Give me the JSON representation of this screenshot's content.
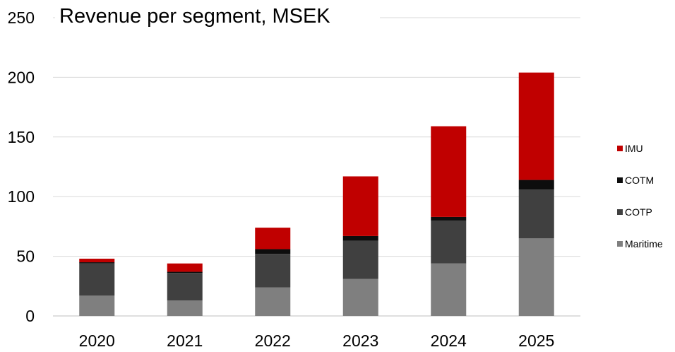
{
  "chart_data": {
    "type": "bar",
    "stacked": true,
    "title": "Revenue per segment, MSEK",
    "xlabel": "",
    "ylabel": "",
    "categories": [
      "2020",
      "2021",
      "2022",
      "2023",
      "2024",
      "2025"
    ],
    "ylim": [
      0,
      250
    ],
    "yticks": [
      0,
      50,
      100,
      150,
      200,
      250
    ],
    "grid": true,
    "legend_position": "right",
    "series": [
      {
        "name": "Maritime",
        "color": "#7f7f7f",
        "values": [
          17,
          13,
          24,
          31,
          44,
          65
        ]
      },
      {
        "name": "COTP",
        "color": "#404040",
        "values": [
          27,
          23,
          28,
          32,
          36,
          41
        ]
      },
      {
        "name": "COTM",
        "color": "#0d0d0d",
        "values": [
          1,
          1,
          4,
          4,
          3,
          8
        ]
      },
      {
        "name": "IMU",
        "color": "#c00000",
        "values": [
          3,
          7,
          18,
          50,
          76,
          90
        ]
      }
    ],
    "legend_order": [
      "IMU",
      "COTM",
      "COTP",
      "Maritime"
    ]
  }
}
